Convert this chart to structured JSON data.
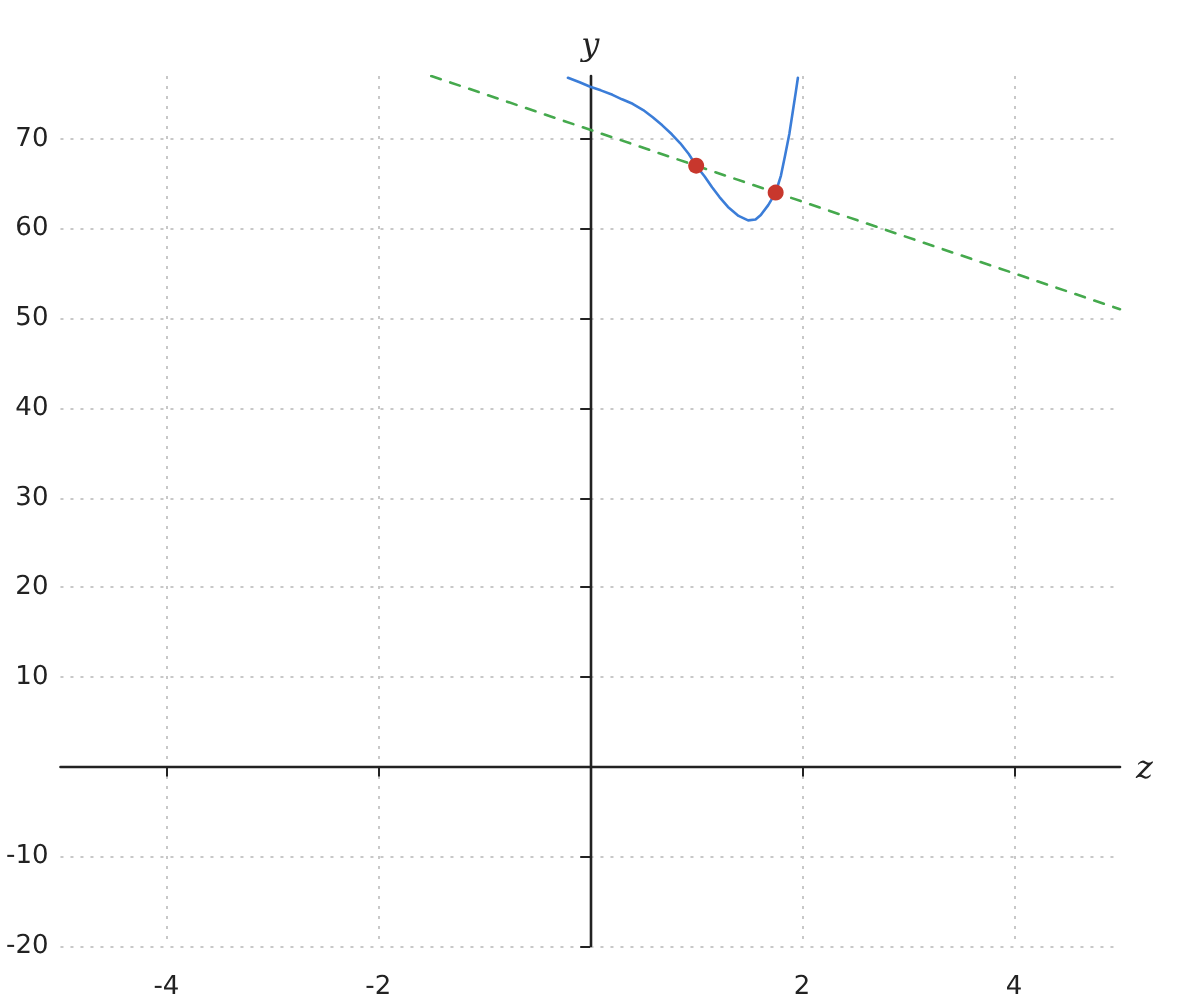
{
  "chart_data": {
    "type": "line",
    "xlabel": "z",
    "ylabel": "y",
    "xlim": [
      -5,
      5
    ],
    "ylim": [
      -20,
      77
    ],
    "xticks": [
      -4,
      -2,
      2,
      4
    ],
    "yticks": [
      -20,
      -10,
      10,
      20,
      30,
      40,
      50,
      60,
      70
    ],
    "grid": true,
    "series": [
      {
        "color": "#3b7dd8",
        "line_style": "solid",
        "marker": "none",
        "x": [
          -0.21,
          -0.1,
          0,
          0.1,
          0.21,
          0.3,
          0.4,
          0.5,
          0.59,
          0.68,
          0.77,
          0.85,
          0.93,
          1,
          1.08,
          1.15,
          1.22,
          1.3,
          1.4,
          1.49,
          1.56,
          1.61,
          1.68,
          1.75,
          1.8,
          1.84,
          1.88,
          1.91,
          1.94,
          1.96
        ],
        "values": [
          76.8,
          76.3,
          75.8,
          75.4,
          74.9,
          74.4,
          73.9,
          73.2,
          72.4,
          71.5,
          70.5,
          69.5,
          68.3,
          67.0,
          65.8,
          64.6,
          63.5,
          62.4,
          61.4,
          60.9,
          61.0,
          61.5,
          62.6,
          64.0,
          65.9,
          68.2,
          70.6,
          72.9,
          75.2,
          76.8
        ]
      },
      {
        "color": "#45a94d",
        "line_style": "dashed",
        "marker": "none",
        "x": [
          -1.5,
          5
        ],
        "values": [
          77,
          51
        ]
      },
      {
        "type": "scatter",
        "color": "#c8372d",
        "marker": "circle",
        "x": [
          1,
          1.75
        ],
        "values": [
          67,
          64
        ]
      }
    ]
  }
}
